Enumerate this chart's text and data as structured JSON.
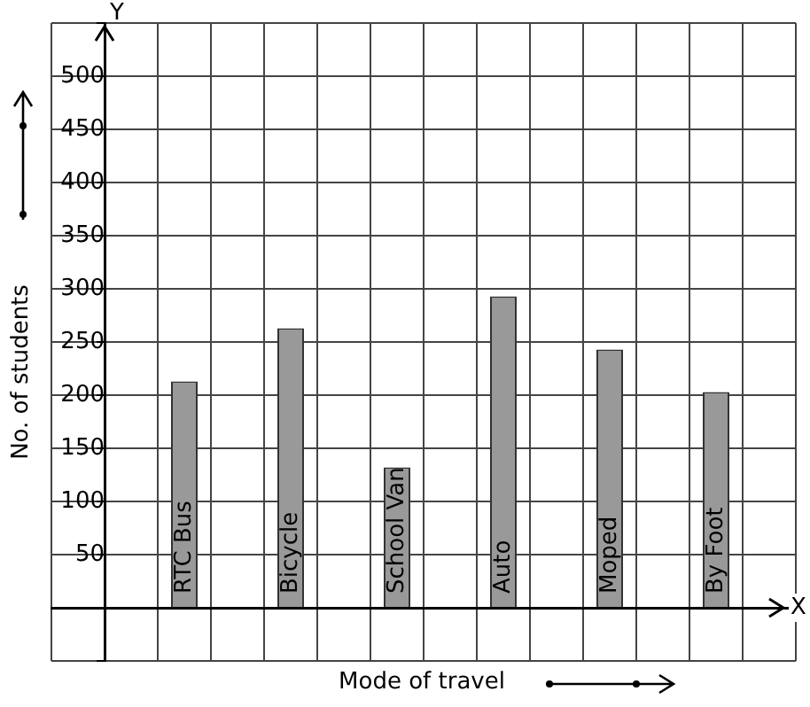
{
  "chart_data": {
    "type": "bar",
    "categories": [
      "RTC Bus",
      "Bicycle",
      "School Van",
      "Auto",
      "Moped",
      "By Foot"
    ],
    "values": [
      213,
      263,
      132,
      293,
      243,
      203
    ],
    "color": "#999999",
    "xlabel": "Mode of travel",
    "ylabel": "No. of students",
    "ylim": [
      -50,
      550
    ],
    "yticks": [
      {
        "value": -50,
        "label": null
      },
      {
        "value": 0,
        "label": null
      },
      50,
      100,
      150,
      200,
      250,
      300,
      350,
      400,
      450,
      500,
      {
        "value": 550,
        "label": null
      }
    ],
    "grid": true,
    "annotations": [
      "Y",
      "X"
    ]
  }
}
